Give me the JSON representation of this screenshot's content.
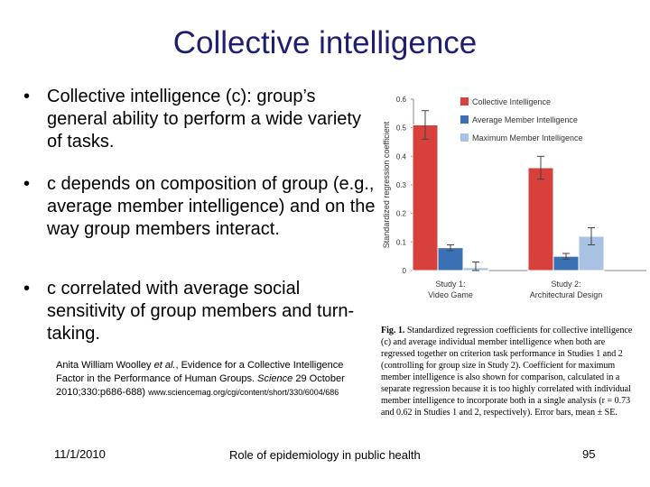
{
  "slide": {
    "title": "Collective intelligence",
    "bullets": [
      "Collective intelligence (c): group’s general ability to perform a wide variety of tasks.",
      "c depends on composition of group (e.g., average member intelligence) and on the way group members interact.",
      "c correlated with average social sensitivity of group members and turn-taking."
    ],
    "bullet_marker": "•",
    "citation": {
      "authors": "Anita William Woolley ",
      "etal": "et al.",
      "text": ", Evidence for a Collective Intelligence Factor in the Performance of Human Groups. ",
      "journal": "Science",
      "details": " 29 October 2010;330:p686-688) ",
      "url": "www.sciencemag.org/cgi/content/short/330/6004/686"
    },
    "caption": {
      "label": "Fig. 1.",
      "text": " Standardized regression coefficients for collective intelligence (c) and average individual member intelligence when both are regressed together on criterion task performance in Studies 1 and 2 (controlling for group size in Study 2). Coefficient for maximum member intelligence is also shown for comparison, calculated in a separate regression because it is too highly correlated with individual member intelligence to incorporate both in a single analysis (r = 0.73 and 0.62 in Studies 1 and 2, respectively). Error bars, mean ± SE."
    },
    "footer": {
      "date": "11/1/2010",
      "center": "Role of epidemiology in public health",
      "page": "95"
    }
  },
  "chart_data": {
    "type": "bar",
    "ylabel": "Standardized regression coefficient",
    "ylim": [
      0,
      0.6
    ],
    "yticks": [
      "0",
      "0.1",
      "0.2",
      "0.3",
      "0.4",
      "0.5",
      "0.6"
    ],
    "categories": [
      {
        "line1": "Study 1:",
        "line2": "Video Game"
      },
      {
        "line1": "Study 2:",
        "line2": "Architectural Design"
      }
    ],
    "series": [
      {
        "name": "Collective Intelligence",
        "color": "#d8413b",
        "values": [
          0.51,
          0.36
        ],
        "errors": [
          0.05,
          0.04
        ]
      },
      {
        "name": "Average Member Intelligence",
        "color": "#3c70b5",
        "values": [
          0.08,
          0.05
        ],
        "errors": [
          0.01,
          0.01
        ]
      },
      {
        "name": "Maximum Member Intelligence",
        "color": "#a9c2e3",
        "values": [
          0.01,
          0.12
        ],
        "errors": [
          0.02,
          0.03
        ]
      }
    ],
    "legend": "top-right",
    "grid": false
  }
}
